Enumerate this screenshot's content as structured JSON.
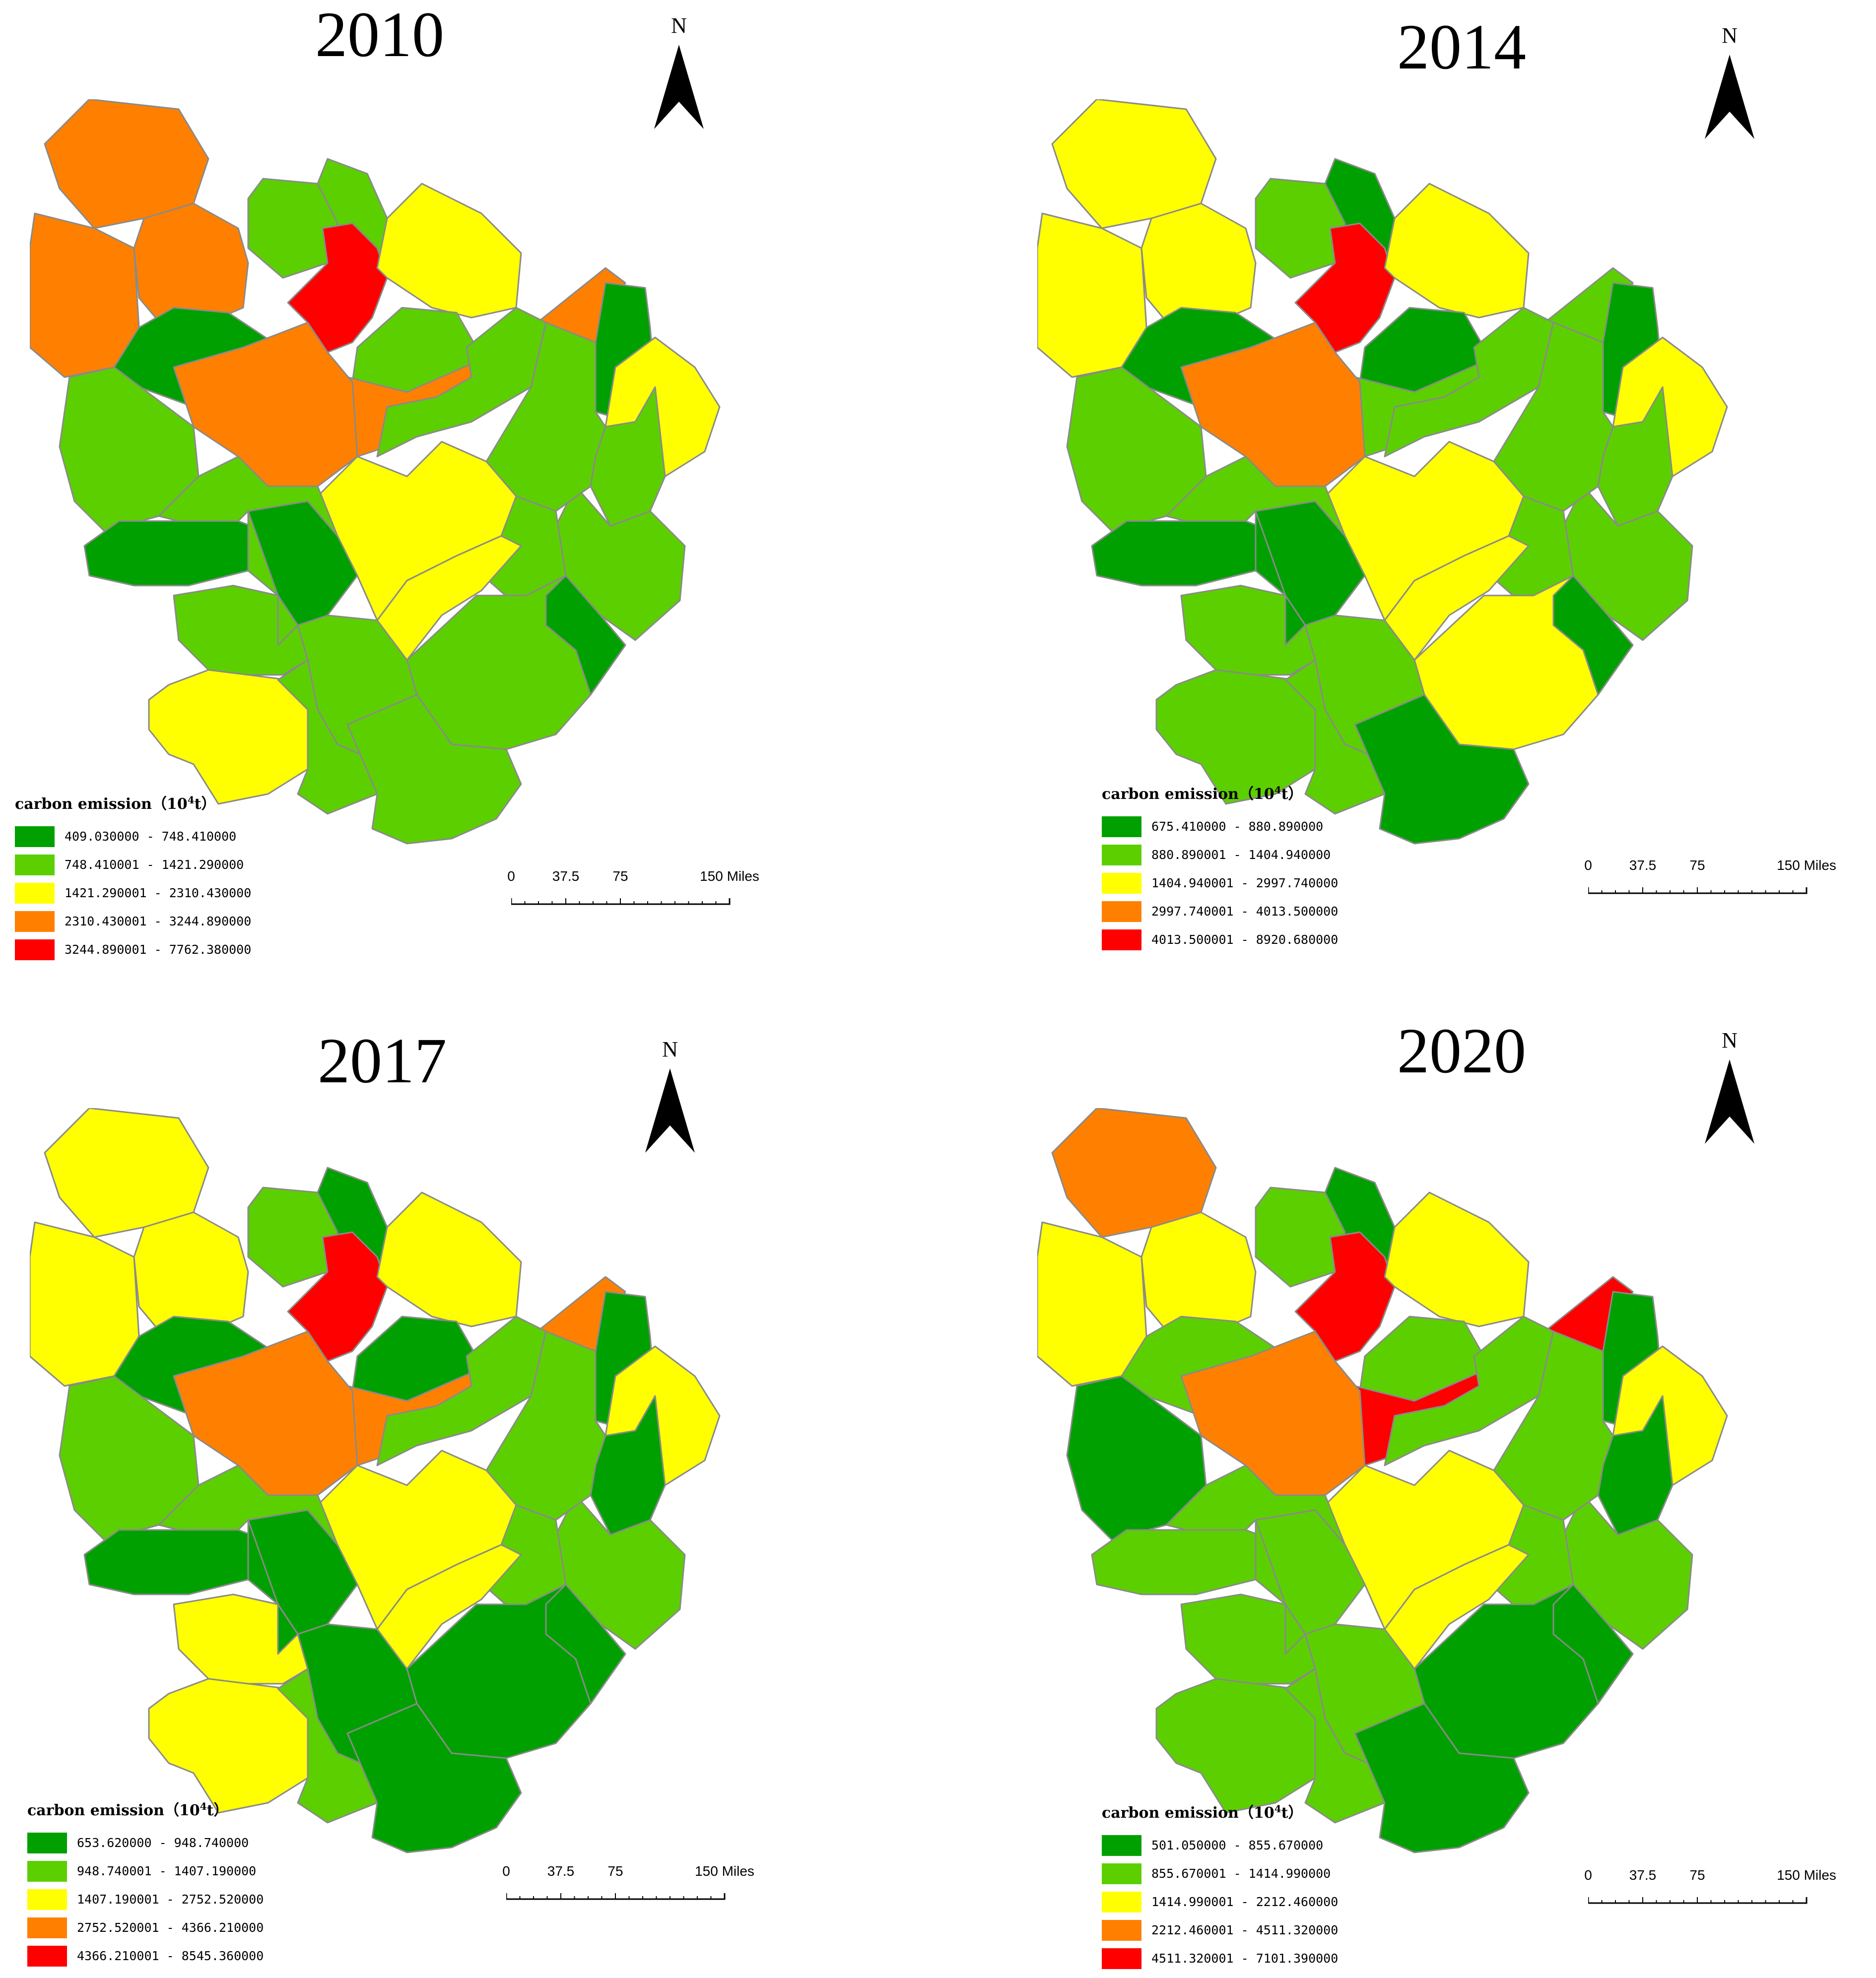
{
  "legend_title_prefix": "carbon emission（10",
  "legend_title_exp": "4",
  "legend_title_suffix": "t）",
  "north_label": "N",
  "scale_labels": [
    "0",
    "37.5",
    "75",
    "150 Miles"
  ],
  "class_colors": [
    "#00a000",
    "#5ccf00",
    "#ffff00",
    "#ff8000",
    "#ff0000"
  ],
  "panels": [
    {
      "year": "2010",
      "legend": [
        "409.030000 - 748.410000",
        "748.410001 - 1421.290000",
        "1421.290001 - 2310.430000",
        "2310.430001 - 3244.890000",
        "3244.890001 - 7762.380000"
      ],
      "regions": [
        3,
        3,
        1,
        3,
        1,
        4,
        2,
        1,
        0,
        3,
        1,
        0,
        2,
        1,
        1,
        1,
        1,
        3,
        1,
        2,
        0,
        0,
        1,
        1,
        1,
        2,
        1,
        2,
        1,
        1,
        1,
        0
      ]
    },
    {
      "year": "2014",
      "legend": [
        "675.410000 - 880.890000",
        "880.890001 - 1404.940000",
        "1404.940001 - 2997.740000",
        "2997.740001 - 4013.500000",
        "4013.500001 - 8920.680000"
      ],
      "regions": [
        2,
        2,
        1,
        2,
        0,
        4,
        2,
        0,
        0,
        1,
        1,
        0,
        2,
        1,
        1,
        1,
        1,
        3,
        1,
        2,
        0,
        0,
        1,
        2,
        1,
        2,
        1,
        1,
        1,
        0,
        0,
        0
      ]
    },
    {
      "year": "2017",
      "legend": [
        "653.620000 - 948.740000",
        "948.740001 - 1407.190000",
        "1407.190001 - 2752.520000",
        "2752.520001 - 4366.210000",
        "4366.210001 - 8545.360000"
      ],
      "regions": [
        2,
        2,
        1,
        2,
        0,
        4,
        2,
        0,
        0,
        3,
        1,
        0,
        2,
        0,
        1,
        1,
        1,
        3,
        1,
        2,
        0,
        0,
        1,
        0,
        0,
        2,
        2,
        2,
        1,
        0,
        0,
        0
      ]
    },
    {
      "year": "2020",
      "legend": [
        "501.050000 - 855.670000",
        "855.670001 - 1414.990000",
        "1414.990001 - 2212.460000",
        "2212.460001 - 4511.320000",
        "4511.320001 - 7101.390000"
      ],
      "regions": [
        3,
        2,
        1,
        2,
        0,
        4,
        2,
        1,
        1,
        4,
        1,
        0,
        2,
        0,
        1,
        1,
        1,
        3,
        0,
        2,
        1,
        1,
        1,
        0,
        1,
        2,
        1,
        1,
        1,
        0,
        1,
        0
      ]
    }
  ]
}
